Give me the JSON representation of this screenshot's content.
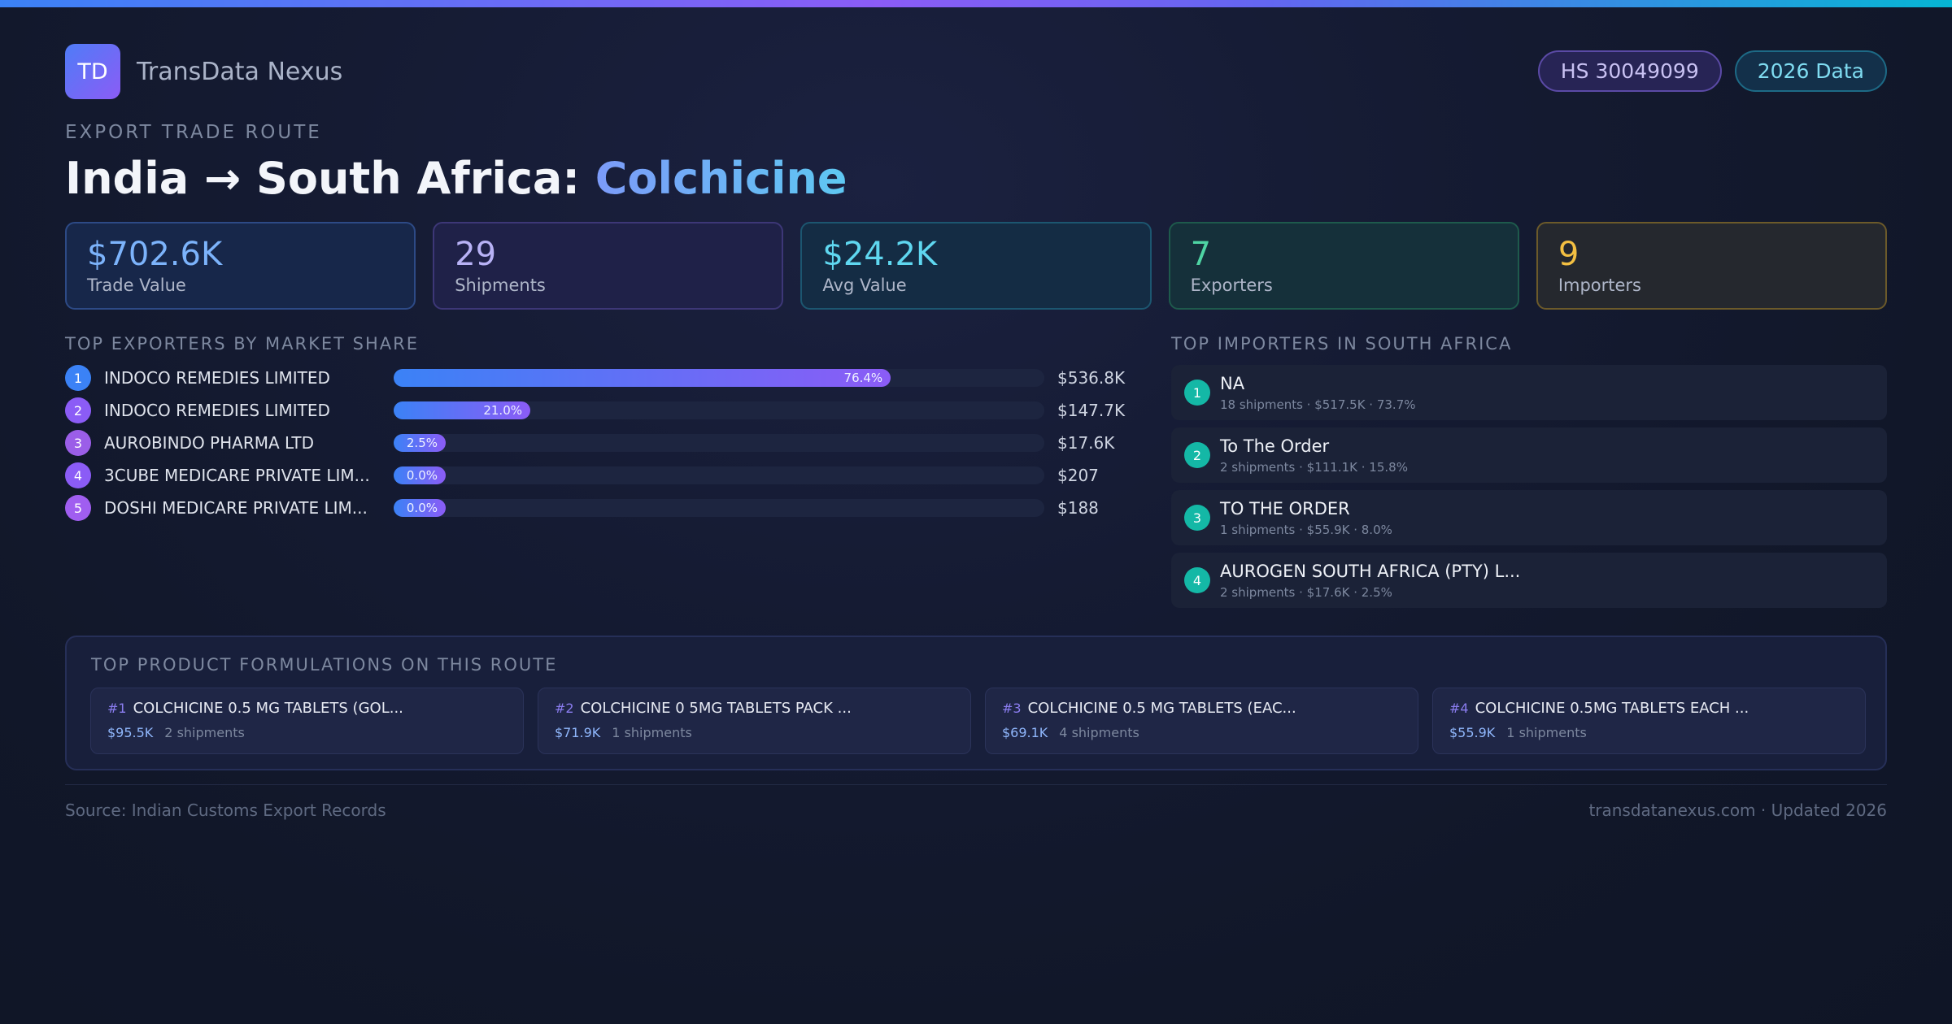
{
  "brand": {
    "logo_text": "TD",
    "name": "TransData Nexus"
  },
  "pills": {
    "hs_code": "HS 30049099",
    "year": "2026 Data"
  },
  "header": {
    "eyebrow": "EXPORT TRADE ROUTE",
    "title_prefix": "India → South Africa: ",
    "title_highlight": "Colchicine"
  },
  "stats": [
    {
      "value": "$702.6K",
      "label": "Trade Value"
    },
    {
      "value": "29",
      "label": "Shipments"
    },
    {
      "value": "$24.2K",
      "label": "Avg Value"
    },
    {
      "value": "7",
      "label": "Exporters"
    },
    {
      "value": "9",
      "label": "Importers"
    }
  ],
  "exporters": {
    "heading": "TOP EXPORTERS BY MARKET SHARE",
    "rank_colors": [
      "#3b82f6",
      "#8b5cf6",
      "#9b5ee8",
      "#8b5cf6",
      "#a05ef0"
    ],
    "items": [
      {
        "rank": "1",
        "name": "INDOCO REMEDIES LIMITED",
        "share": 76.4,
        "share_label": "76.4%",
        "value": "$536.8K"
      },
      {
        "rank": "2",
        "name": "INDOCO REMEDIES LIMITED",
        "share": 21.0,
        "share_label": "21.0%",
        "value": "$147.7K"
      },
      {
        "rank": "3",
        "name": "AUROBINDO PHARMA LTD",
        "share": 2.5,
        "share_label": "2.5%",
        "value": "$17.6K"
      },
      {
        "rank": "4",
        "name": "3CUBE MEDICARE PRIVATE LIM...",
        "share": 0.0,
        "share_label": "0.0%",
        "value": "$207"
      },
      {
        "rank": "5",
        "name": "DOSHI MEDICARE PRIVATE LIM...",
        "share": 0.0,
        "share_label": "0.0%",
        "value": "$188"
      }
    ]
  },
  "importers": {
    "heading": "TOP IMPORTERS IN SOUTH AFRICA",
    "items": [
      {
        "rank": "1",
        "name": "NA",
        "meta": "18 shipments · $517.5K · 73.7%"
      },
      {
        "rank": "2",
        "name": "To The Order",
        "meta": "2 shipments · $111.1K · 15.8%"
      },
      {
        "rank": "3",
        "name": "TO THE ORDER",
        "meta": "1 shipments · $55.9K · 8.0%"
      },
      {
        "rank": "4",
        "name": "AUROGEN SOUTH AFRICA (PTY) L...",
        "meta": "2 shipments · $17.6K · 2.5%"
      }
    ]
  },
  "formulations": {
    "heading": "TOP PRODUCT FORMULATIONS ON THIS ROUTE",
    "items": [
      {
        "num": "#1",
        "name": "COLCHICINE 0.5 MG TABLETS (GOL...",
        "price": "$95.5K",
        "shipments": "2 shipments"
      },
      {
        "num": "#2",
        "name": "COLCHICINE 0 5MG TABLETS PACK ...",
        "price": "$71.9K",
        "shipments": "1 shipments"
      },
      {
        "num": "#3",
        "name": "COLCHICINE 0.5 MG TABLETS (EAC...",
        "price": "$69.1K",
        "shipments": "4 shipments"
      },
      {
        "num": "#4",
        "name": "COLCHICINE 0.5MG TABLETS EACH ...",
        "price": "$55.9K",
        "shipments": "1 shipments"
      }
    ]
  },
  "footer": {
    "source": "Source: Indian Customs Export Records",
    "site": "transdatanexus.com · Updated 2026"
  }
}
